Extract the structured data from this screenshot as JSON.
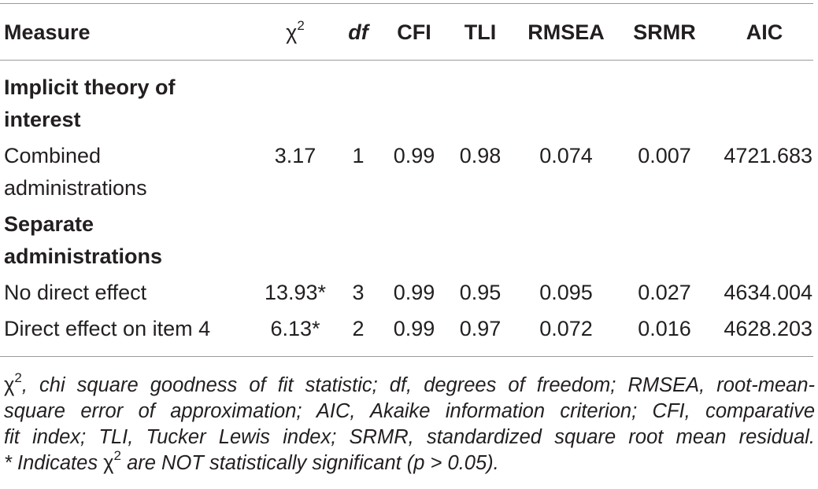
{
  "table": {
    "headers": {
      "measure": "Measure",
      "chi_symbol": "χ",
      "chi_sup": "2",
      "df": "df",
      "cfi": "CFI",
      "tli": "TLI",
      "rmsea": "RMSEA",
      "srmr": "SRMR",
      "aic": "AIC"
    },
    "section1": {
      "line1": "Implicit theory of",
      "line2": "interest"
    },
    "row_combined": {
      "label_line1": "Combined",
      "label_line2": "administrations",
      "chi": "3.17",
      "df": "1",
      "cfi": "0.99",
      "tli": "0.98",
      "rmsea": "0.074",
      "srmr": "0.007",
      "aic": "4721.683"
    },
    "section2": {
      "line1": "Separate",
      "line2": "administrations"
    },
    "row_no_direct": {
      "label": "No direct effect",
      "chi": "13.93*",
      "df": "3",
      "cfi": "0.99",
      "tli": "0.95",
      "rmsea": "0.095",
      "srmr": "0.027",
      "aic": "4634.004"
    },
    "row_direct_item4": {
      "label": "Direct effect on item 4",
      "chi": "6.13*",
      "df": "2",
      "cfi": "0.99",
      "tli": "0.97",
      "rmsea": "0.072",
      "srmr": "0.016",
      "aic": "4628.203"
    }
  },
  "footnote": {
    "chi_symbol": "χ",
    "chi_sup": "2",
    "line1_rest": ", chi square goodness of fit statistic; df, degrees of freedom; RMSEA, root-mean-",
    "line2": "square error of approximation; AIC, Akaike information criterion; CFI, comparative",
    "line3": "fit index; TLI, Tucker Lewis index; SRMR, standardized square root mean residual.",
    "line4_prefix": "* Indicates ",
    "line4_suffix": " are NOT statistically significant (p > 0.05)."
  }
}
